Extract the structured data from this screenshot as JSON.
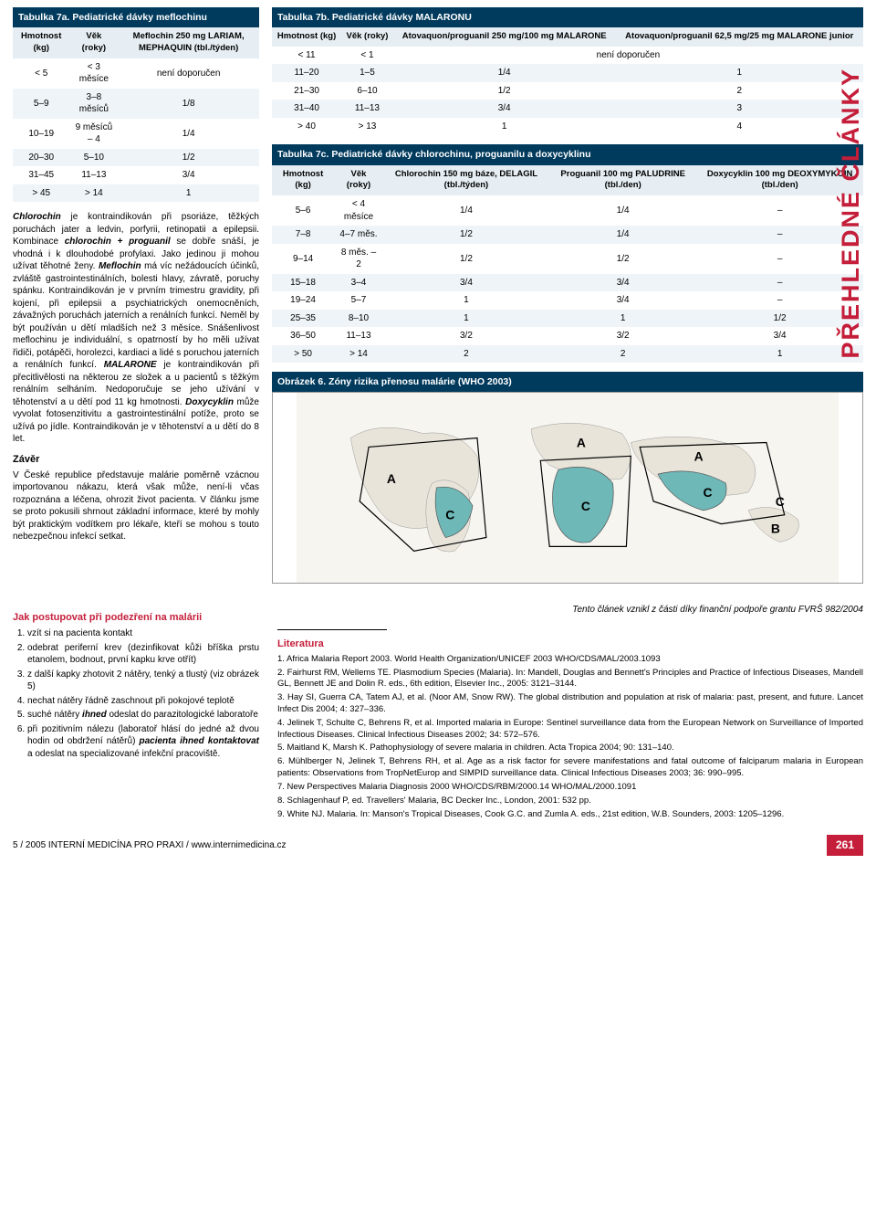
{
  "side_tab": "PŘEHLEDNÉ ČLÁNKY",
  "table7a": {
    "title": "Tabulka 7a. Pediatrické dávky meflochinu",
    "columns": [
      "Hmotnost (kg)",
      "Věk (roky)",
      "Meflochin 250 mg LARIAM, MEPHAQUIN (tbl./týden)"
    ],
    "rows": [
      [
        "< 5",
        "< 3 měsíce",
        "není doporučen"
      ],
      [
        "5–9",
        "3–8 měsíců",
        "1/8"
      ],
      [
        "10–19",
        "9 měsíců – 4",
        "1/4"
      ],
      [
        "20–30",
        "5–10",
        "1/2"
      ],
      [
        "31–45",
        "11–13",
        "3/4"
      ],
      [
        "> 45",
        "> 14",
        "1"
      ]
    ]
  },
  "table7b": {
    "title": "Tabulka 7b. Pediatrické dávky MALARONU",
    "columns": [
      "Hmotnost (kg)",
      "Věk (roky)",
      "Atovaquon/proguanil 250 mg/100 mg MALARONE",
      "Atovaquon/proguanil 62,5 mg/25 mg MALARONE junior"
    ],
    "rows": [
      [
        "< 11",
        "< 1",
        "není doporučen",
        ""
      ],
      [
        "11–20",
        "1–5",
        "1/4",
        "1"
      ],
      [
        "21–30",
        "6–10",
        "1/2",
        "2"
      ],
      [
        "31–40",
        "11–13",
        "3/4",
        "3"
      ],
      [
        "> 40",
        "> 13",
        "1",
        "4"
      ]
    ]
  },
  "table7c": {
    "title": "Tabulka 7c. Pediatrické dávky chlorochinu, proguanilu a doxycyklinu",
    "columns": [
      "Hmotnost (kg)",
      "Věk (roky)",
      "Chlorochin 150 mg báze, DELAGIL (tbl./týden)",
      "Proguanil 100 mg PALUDRINE (tbl./den)",
      "Doxycyklin 100 mg DEOXYMYKOIN (tbl./den)"
    ],
    "rows": [
      [
        "5–6",
        "< 4 měsíce",
        "1/4",
        "1/4",
        "–"
      ],
      [
        "7–8",
        "4–7 měs.",
        "1/2",
        "1/4",
        "–"
      ],
      [
        "9–14",
        "8 měs. – 2",
        "1/2",
        "1/2",
        "–"
      ],
      [
        "15–18",
        "3–4",
        "3/4",
        "3/4",
        "–"
      ],
      [
        "19–24",
        "5–7",
        "1",
        "3/4",
        "–"
      ],
      [
        "25–35",
        "8–10",
        "1",
        "1",
        "1/2"
      ],
      [
        "36–50",
        "11–13",
        "3/2",
        "3/2",
        "3/4"
      ],
      [
        "> 50",
        "> 14",
        "2",
        "2",
        "1"
      ]
    ]
  },
  "para_chlorochin_html": "<b><i>Chlorochin</i></b> je kontraindikován při psoriáze, těžkých poruchách jater a ledvin, porfyrii, retinopatii a epilepsii. Kombinace <b><i>chlorochin + proguanil</i></b> se dobře snáší, je vhodná i k dlouhodobé profylaxi. Jako jedinou ji mohou užívat těhotné ženy. <b><i>Meflochin</i></b> má víc nežádoucích účinků, zvláště gastrointestinálních, bolesti hlavy, závratě, poruchy spánku. Kontraindikován je v prvním trimestru gravidity, při kojení, při epilepsii a psychiatrických onemocněních, závažných poruchách jaterních a renálních funkcí. Neměl by být používán u dětí mladších než 3 měsíce. Snášenlivost meflochinu je individuální, s opatrností by ho měli užívat řidiči, potápěči, horolezci, kardiaci a lidé s poruchou jaterních a renálních funkcí. <b><i>MALARONE</i></b> je kontraindikován při přecitlivělosti na některou ze složek a u pacientů s těžkým renálním selháním. Nedoporučuje se jeho užívání v těhotenství a u dětí pod 11 kg hmotnosti. <b><i>Doxycyklin</i></b> může vyvolat fotosenzitivitu a gastrointestinální potíže, proto se užívá po jídle. Kontraindikován je v těhotenství a u dětí do 8 let.",
  "map_title": "Obrázek 6. Zóny rizika přenosu malárie (WHO 2003)",
  "zaver_head": "Závěr",
  "zaver_text": "V České republice představuje malárie poměrně vzácnou importovanou nákazu, která však může, není-li včas rozpoznána a léčena, ohrozit život pacienta. V článku jsme se proto pokusili shrnout základní informace, které by mohly být praktickým vodítkem pro lékaře, kteří se mohou s touto nebezpečnou infekcí setkat.",
  "postup_head": "Jak postupovat při podezření na malárii",
  "postup_items_html": [
    "vzít si na pacienta kontakt",
    "odebrat periferní krev (dezinfikovat kůži bříška prstu etanolem, bodnout, první kapku krve otřít)",
    "z další kapky zhotovit 2 nátěry, tenký a tlustý (viz obrázek 5)",
    "nechat nátěry řádně zaschnout při pokojové teplotě",
    "suché nátěry <b><i>ihned</i></b> odeslat do parazitologické laboratoře",
    "při pozitivním nálezu (laboratoř hlásí do jedné až dvou hodin od obdržení nátěrů) <b><i>pacienta ihned kontaktovat</i></b> a odeslat na specializované infekční pracoviště."
  ],
  "grant_text": "Tento článek vznikl z části díky finanční podpoře grantu FVRŠ 982/2004",
  "lit_head": "Literatura",
  "refs": [
    "1. Africa Malaria Report 2003. World Health Organization/UNICEF 2003 WHO/CDS/MAL/2003.1093",
    "2. Fairhurst RM, Wellems TE. Plasmodium Species (Malaria). In: Mandell, Douglas and Bennett's Principles and Practice of Infectious Diseases, Mandell GL, Bennett JE and Dolin R. eds., 6th edition, Elsevier Inc., 2005: 3121–3144.",
    "3. Hay SI, Guerra CA, Tatem AJ, et al. (Noor AM, Snow RW). The global distribution and population at risk of malaria: past, present, and future. Lancet Infect Dis 2004; 4: 327–336.",
    "4. Jelinek T, Schulte C, Behrens R, et al. Imported malaria in Europe: Sentinel surveillance data from the European Network on Surveillance of Imported Infectious Diseases. Clinical Infectious Diseases 2002; 34: 572–576.",
    "5. Maitland K, Marsh K. Pathophysiology of severe malaria in children. Acta Tropica 2004; 90: 131–140.",
    "6. Mühlberger N, Jelinek T, Behrens RH, et al. Age as a risk factor for severe manifestations and fatal outcome of falciparum malaria in European patients: Observations from TropNetEurop and SIMPID surveillance data. Clinical Infectious Diseases 2003; 36: 990–995.",
    "7. New Perspectives Malaria Diagnosis 2000 WHO/CDS/RBM/2000.14 WHO/MAL/2000.1091",
    "8. Schlagenhauf P, ed. Travellers' Malaria, BC Decker Inc., London, 2001: 532 pp.",
    "9. White NJ. Malaria. In: Manson's Tropical Diseases, Cook G.C. and Zumla A. eds., 21st edition, W.B. Sounders, 2003: 1205–1296."
  ],
  "footer_left": "5 / 2005   INTERNÍ MEDICÍNA PRO PRAXI   /   www.internimedicina.cz",
  "footer_page": "261",
  "colors": {
    "header_bg": "#003a5d",
    "row_alt": "#eef4f8",
    "accent_red": "#c41e3a",
    "map_land": "#e8e4da",
    "map_risk": "#6fb8b8"
  }
}
